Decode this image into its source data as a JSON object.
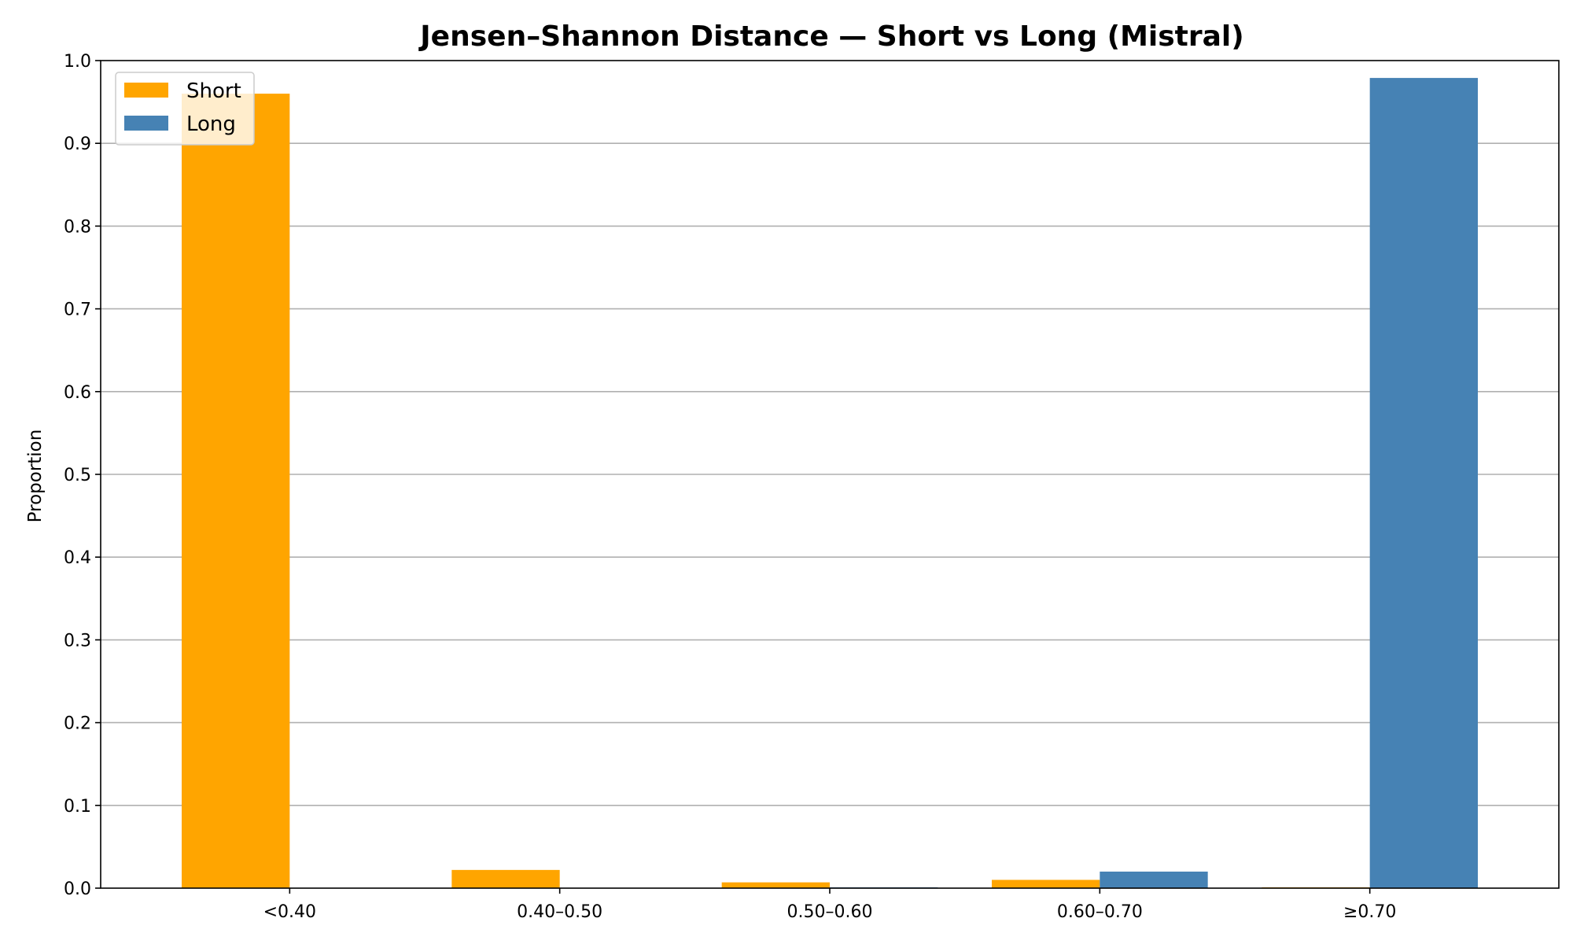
{
  "chart_data": {
    "type": "bar",
    "title": "Jensen–Shannon Distance — Short vs Long (Mistral)",
    "xlabel": "",
    "ylabel": "Proportion",
    "categories": [
      "<0.40",
      "0.40–0.50",
      "0.50–0.60",
      "0.60–0.70",
      "≥0.70"
    ],
    "series": [
      {
        "name": "Short",
        "color": "#ffa500",
        "values": [
          0.96,
          0.022,
          0.007,
          0.01,
          0.001
        ]
      },
      {
        "name": "Long",
        "color": "#4682b4",
        "values": [
          0.0,
          0.0,
          0.001,
          0.02,
          0.979
        ]
      }
    ],
    "ylim": [
      0,
      1.0
    ],
    "yticks": [
      "0.0",
      "0.1",
      "0.2",
      "0.3",
      "0.4",
      "0.5",
      "0.6",
      "0.7",
      "0.8",
      "0.9",
      "1.0"
    ],
    "grid": "horizontal",
    "legend_position": "top-left"
  }
}
